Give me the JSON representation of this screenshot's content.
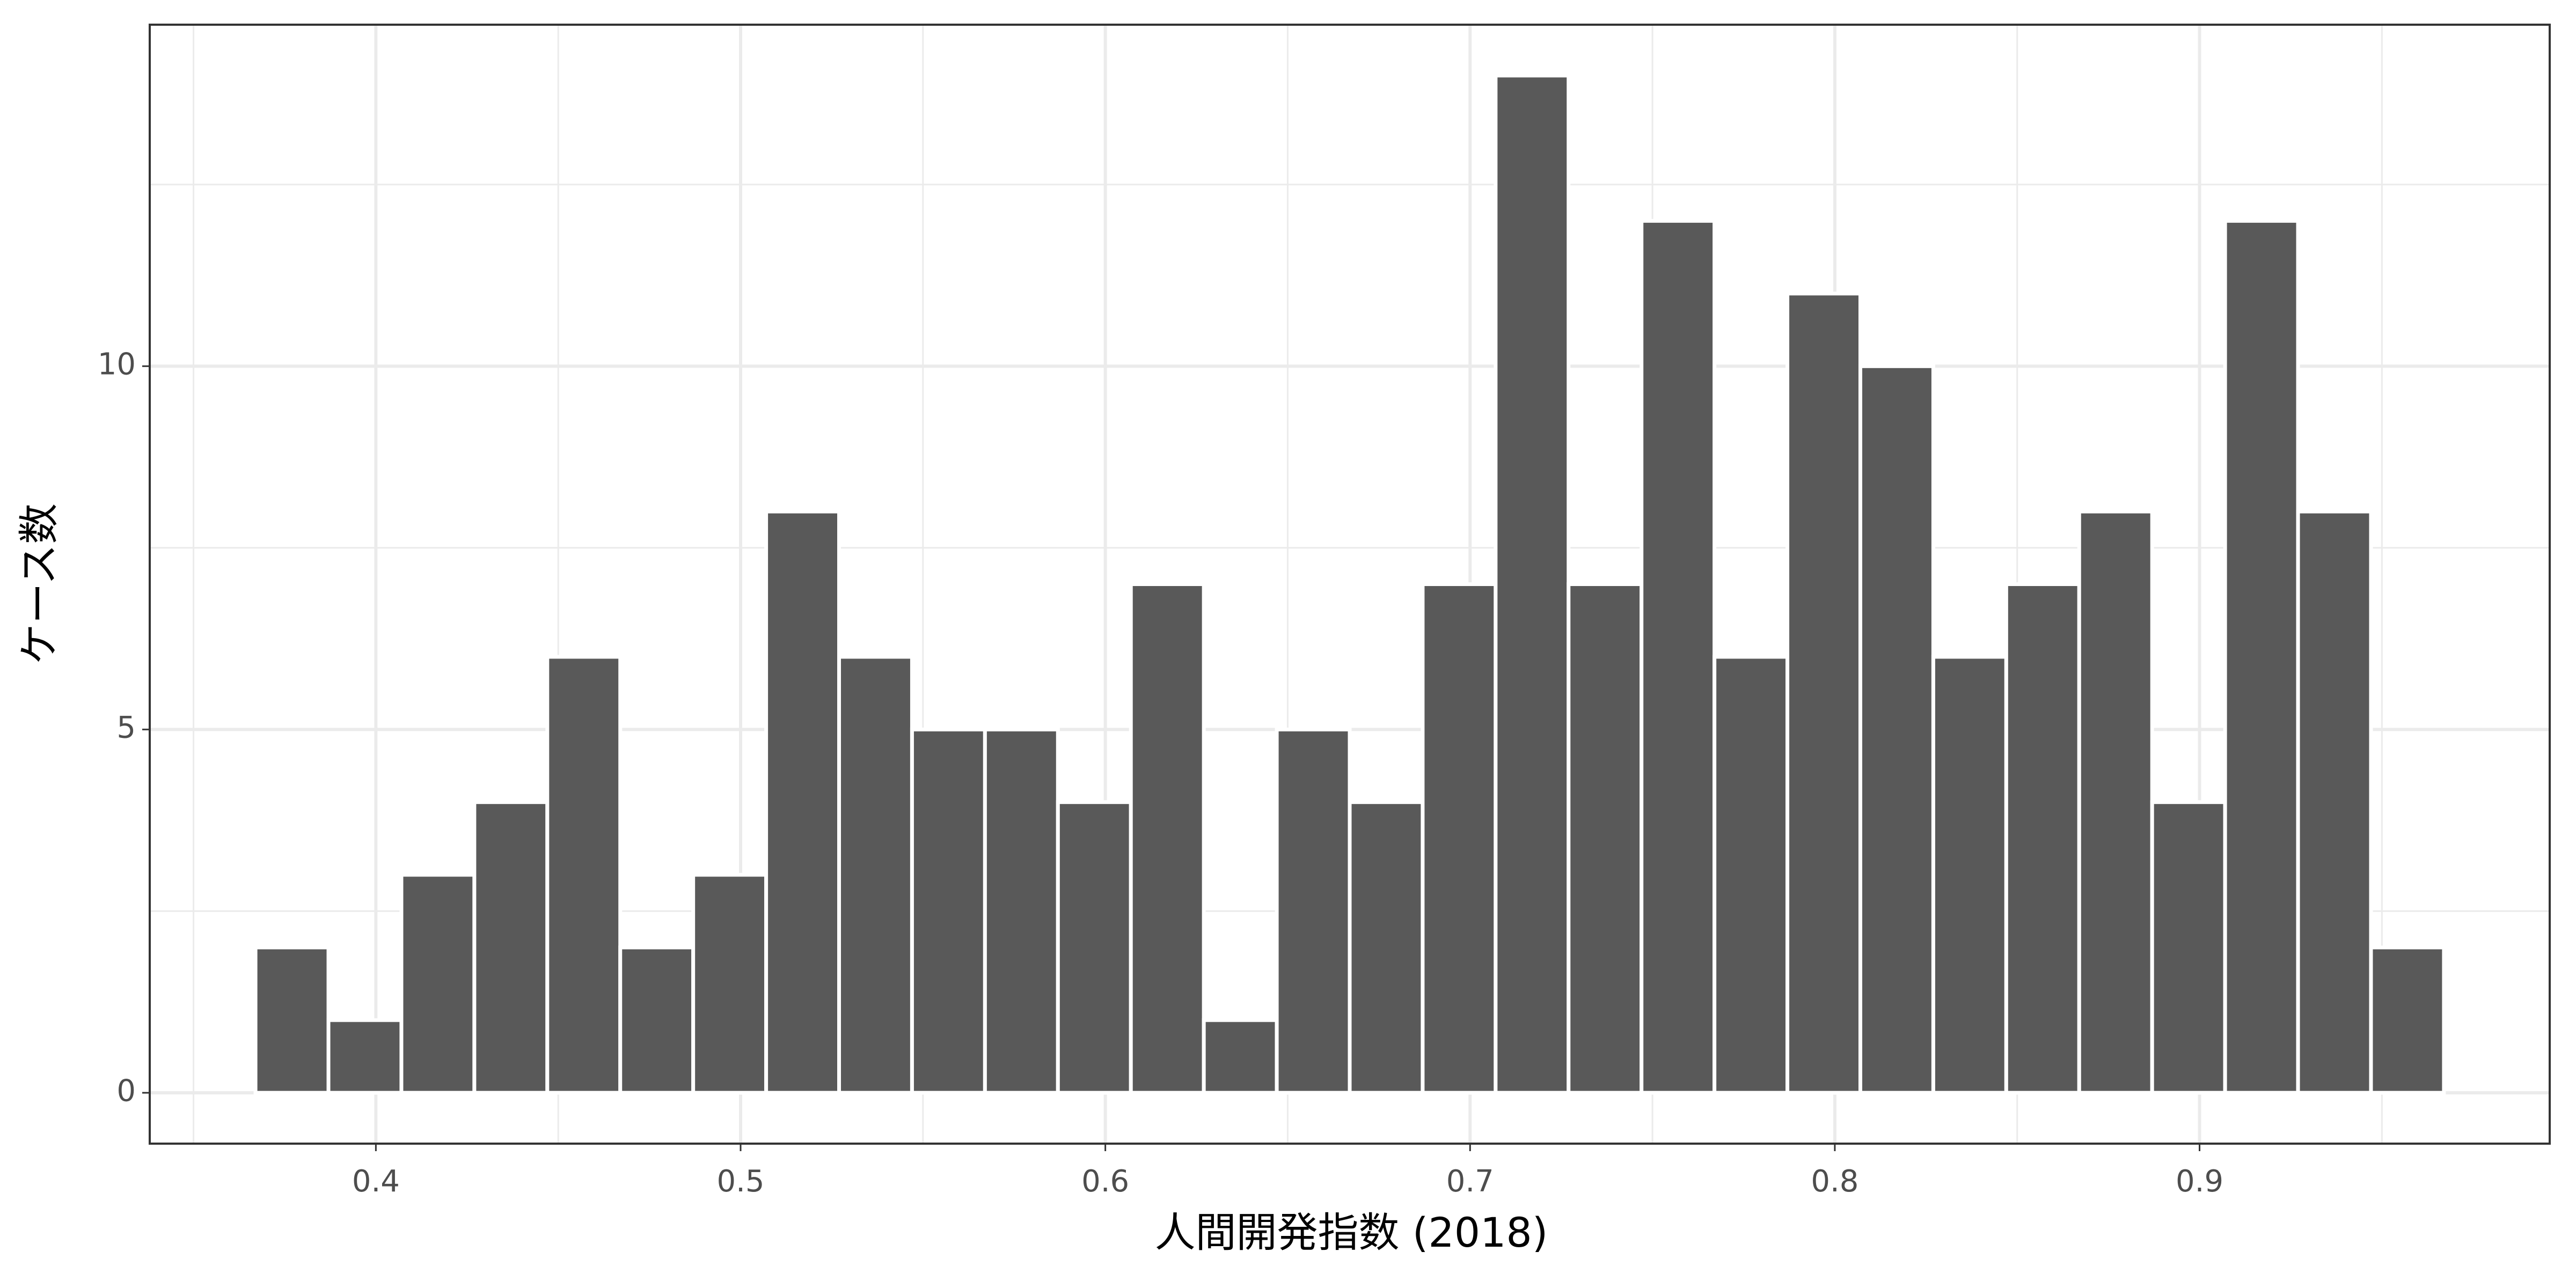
{
  "chart_data": {
    "type": "histogram",
    "x_label": "人間開発指数 (2018)",
    "y_label": "ケース数",
    "bins": [
      0.367,
      0.387,
      0.407,
      0.427,
      0.447,
      0.467,
      0.487,
      0.507,
      0.527,
      0.547,
      0.567,
      0.587,
      0.607,
      0.627,
      0.647,
      0.667,
      0.687,
      0.707,
      0.727,
      0.747,
      0.767,
      0.787,
      0.807,
      0.827,
      0.847,
      0.867,
      0.887,
      0.907,
      0.927,
      0.947,
      0.967
    ],
    "values": [
      2,
      1,
      3,
      4,
      6,
      2,
      3,
      8,
      6,
      5,
      5,
      4,
      7,
      1,
      5,
      4,
      7,
      14,
      7,
      12,
      6,
      11,
      10,
      6,
      7,
      8,
      4,
      12,
      8,
      2
    ],
    "color": "#595959",
    "xlim": [
      0.338,
      0.996
    ],
    "xticks": [
      0.4,
      0.5,
      0.6,
      0.7,
      0.8,
      0.9
    ],
    "ylim": [
      -0.7,
      14.7
    ],
    "yticks": [
      0,
      5,
      10
    ],
    "x_minor_grid": [
      0.35,
      0.45,
      0.55,
      0.65,
      0.75,
      0.85,
      0.95
    ],
    "y_minor_grid": [
      2.5,
      7.5,
      12.5
    ],
    "grid": true
  }
}
